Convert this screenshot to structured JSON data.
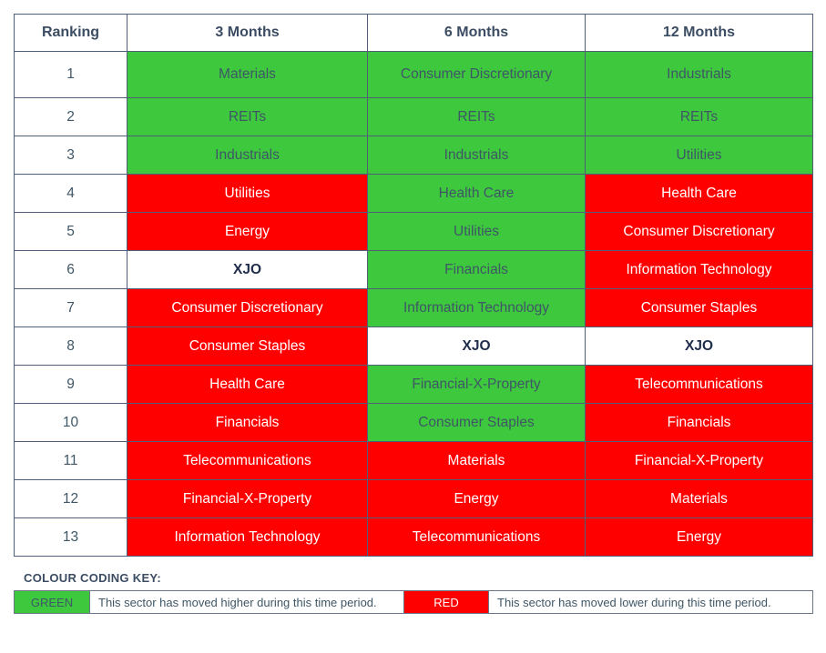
{
  "styles": {
    "green": {
      "bg": "#3ec83e",
      "fg": "#3f5666",
      "weight": "normal"
    },
    "red": {
      "bg": "#ff0000",
      "fg": "#ffffff",
      "weight": "normal"
    },
    "white": {
      "bg": "#ffffff",
      "fg": "#1f2d4a",
      "weight": "bold"
    }
  },
  "table": {
    "header": [
      "Ranking",
      "3 Months",
      "6 Months",
      "12 Months"
    ],
    "rows": [
      {
        "rank": "1",
        "cells": [
          {
            "text": "Materials",
            "style": "green"
          },
          {
            "text": "Consumer Discretionary",
            "style": "green"
          },
          {
            "text": "Industrials",
            "style": "green"
          }
        ]
      },
      {
        "rank": "2",
        "cells": [
          {
            "text": "REITs",
            "style": "green"
          },
          {
            "text": "REITs",
            "style": "green"
          },
          {
            "text": "REITs",
            "style": "green"
          }
        ]
      },
      {
        "rank": "3",
        "cells": [
          {
            "text": "Industrials",
            "style": "green"
          },
          {
            "text": "Industrials",
            "style": "green"
          },
          {
            "text": "Utilities",
            "style": "green"
          }
        ]
      },
      {
        "rank": "4",
        "cells": [
          {
            "text": "Utilities",
            "style": "red"
          },
          {
            "text": "Health Care",
            "style": "green"
          },
          {
            "text": "Health Care",
            "style": "red"
          }
        ]
      },
      {
        "rank": "5",
        "cells": [
          {
            "text": "Energy",
            "style": "red"
          },
          {
            "text": "Utilities",
            "style": "green"
          },
          {
            "text": "Consumer Discretionary",
            "style": "red"
          }
        ]
      },
      {
        "rank": "6",
        "cells": [
          {
            "text": "XJO",
            "style": "white"
          },
          {
            "text": "Financials",
            "style": "green"
          },
          {
            "text": "Information Technology",
            "style": "red"
          }
        ]
      },
      {
        "rank": "7",
        "cells": [
          {
            "text": "Consumer Discretionary",
            "style": "red"
          },
          {
            "text": "Information Technology",
            "style": "green"
          },
          {
            "text": "Consumer Staples",
            "style": "red"
          }
        ]
      },
      {
        "rank": "8",
        "cells": [
          {
            "text": "Consumer Staples",
            "style": "red"
          },
          {
            "text": "XJO",
            "style": "white"
          },
          {
            "text": "XJO",
            "style": "white"
          }
        ]
      },
      {
        "rank": "9",
        "cells": [
          {
            "text": "Health Care",
            "style": "red"
          },
          {
            "text": "Financial-X-Property",
            "style": "green"
          },
          {
            "text": "Telecommunications",
            "style": "red"
          }
        ]
      },
      {
        "rank": "10",
        "cells": [
          {
            "text": "Financials",
            "style": "red"
          },
          {
            "text": "Consumer Staples",
            "style": "green"
          },
          {
            "text": "Financials",
            "style": "red"
          }
        ]
      },
      {
        "rank": "11",
        "cells": [
          {
            "text": "Telecommunications",
            "style": "red"
          },
          {
            "text": "Materials",
            "style": "red"
          },
          {
            "text": "Financial-X-Property",
            "style": "red"
          }
        ]
      },
      {
        "rank": "12",
        "cells": [
          {
            "text": "Financial-X-Property",
            "style": "red"
          },
          {
            "text": "Energy",
            "style": "red"
          },
          {
            "text": "Materials",
            "style": "red"
          }
        ]
      },
      {
        "rank": "13",
        "cells": [
          {
            "text": "Information Technology",
            "style": "red"
          },
          {
            "text": "Telecommunications",
            "style": "red"
          },
          {
            "text": "Energy",
            "style": "red"
          }
        ]
      }
    ]
  },
  "key": {
    "title": "COLOUR CODING KEY:",
    "items": [
      {
        "label": "GREEN",
        "style": "green",
        "description": "This sector has moved higher during this time period."
      },
      {
        "label": "RED",
        "style": "red",
        "description": "This sector has moved lower during this time period."
      }
    ]
  }
}
